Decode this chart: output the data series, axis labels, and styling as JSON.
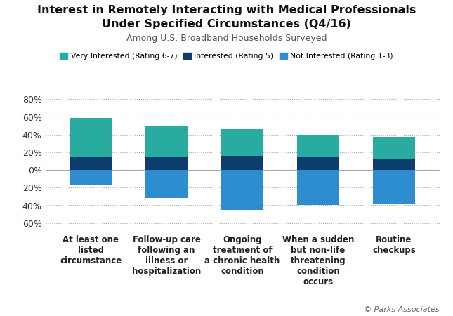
{
  "title_line1": "Interest in Remotely Interacting with Medical Professionals",
  "title_line2": "Under Specified Circumstances (Q4/16)",
  "subtitle": "Among U.S. Broadband Households Surveyed",
  "categories": [
    "At least one\nlisted\ncircumstance",
    "Follow-up care\nfollowing an\nillness or\nhospitalization",
    "Ongoing\ntreatment of\na chronic health\ncondition",
    "When a sudden\nbut non-life\nthreatening\ncondition\noccurs",
    "Routine\ncheckups"
  ],
  "very_interested": [
    44,
    34,
    30,
    25,
    25
  ],
  "interested": [
    15,
    15,
    16,
    15,
    12
  ],
  "not_interested": [
    -17,
    -32,
    -45,
    -40,
    -38
  ],
  "color_very_interested": "#2aab9f",
  "color_interested": "#0d3c6e",
  "color_not_interested": "#2d8dcf",
  "legend_labels": [
    "Very Interested (Rating 6-7)",
    "Interested (Rating 5)",
    "Not Interested (Rating 1-3)"
  ],
  "ylim": [
    -65,
    85
  ],
  "yticks": [
    -60,
    -40,
    -20,
    0,
    20,
    40,
    60,
    80
  ],
  "ytick_labels": [
    "60%",
    "40%",
    "20%",
    "0%",
    "20%",
    "40%",
    "60%",
    "80%"
  ],
  "footer": "© Parks Associates",
  "background_color": "#ffffff"
}
